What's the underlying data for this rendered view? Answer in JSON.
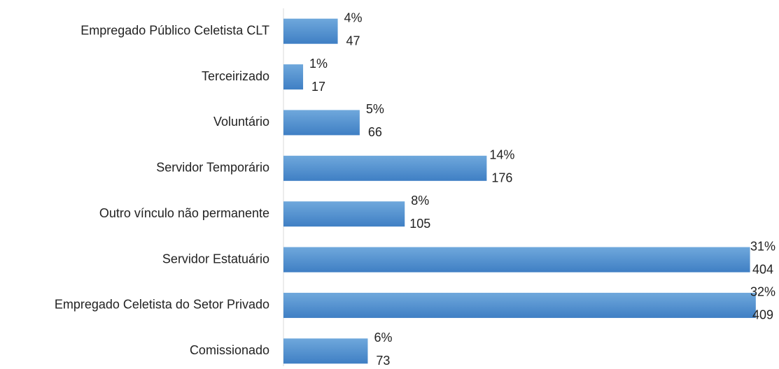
{
  "chart_data": {
    "type": "barh",
    "categories": [
      "Empregado Público Celetista CLT",
      "Terceirizado",
      "Voluntário",
      "Servidor Temporário",
      "Outro vínculo não permanente",
      "Servidor Estatuário",
      "Empregado Celetista do Setor Privado",
      "Comissionado"
    ],
    "values": [
      47,
      17,
      66,
      176,
      105,
      404,
      409,
      73
    ],
    "percent_values": [
      4,
      1,
      5,
      14,
      8,
      31,
      32,
      6
    ],
    "percent_labels": [
      "4%",
      "1%",
      "5%",
      "14%",
      "8%",
      "31%",
      "32%",
      "6%"
    ],
    "color": "#5b9bd5",
    "xlim": [
      0,
      420
    ]
  }
}
